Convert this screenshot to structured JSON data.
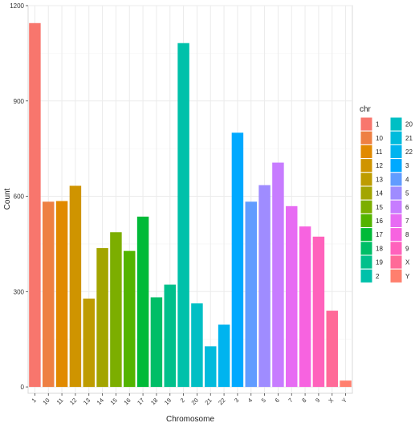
{
  "chart_data": {
    "type": "bar",
    "title": "",
    "xlabel": "Chromosome",
    "ylabel": "Count",
    "ylim": [
      -20,
      1200
    ],
    "yticks": [
      0,
      300,
      600,
      900,
      1200
    ],
    "grid": true,
    "legend_title": "chr",
    "legend_placement": "right",
    "categories": [
      "1",
      "10",
      "11",
      "12",
      "13",
      "14",
      "15",
      "16",
      "17",
      "18",
      "19",
      "2",
      "20",
      "21",
      "22",
      "3",
      "4",
      "5",
      "6",
      "7",
      "8",
      "9",
      "X",
      "Y"
    ],
    "values": [
      1145,
      583,
      585,
      633,
      278,
      437,
      487,
      428,
      536,
      282,
      322,
      1082,
      263,
      128,
      196,
      800,
      583,
      635,
      706,
      569,
      505,
      473,
      240,
      20
    ],
    "colors": [
      "#F8766D",
      "#EE8043",
      "#E18A00",
      "#CF9400",
      "#BE9C00",
      "#A3A500",
      "#7CAE00",
      "#53B400",
      "#00BA38",
      "#00BE67",
      "#00C08B",
      "#00C1AA",
      "#00BFC4",
      "#00BBDC",
      "#00B4EF",
      "#00A9FF",
      "#619CFF",
      "#9F8CFF",
      "#C77CFF",
      "#E76BF3",
      "#F763E0",
      "#FF62BC",
      "#FF6A98",
      "#FF7F6E"
    ]
  }
}
